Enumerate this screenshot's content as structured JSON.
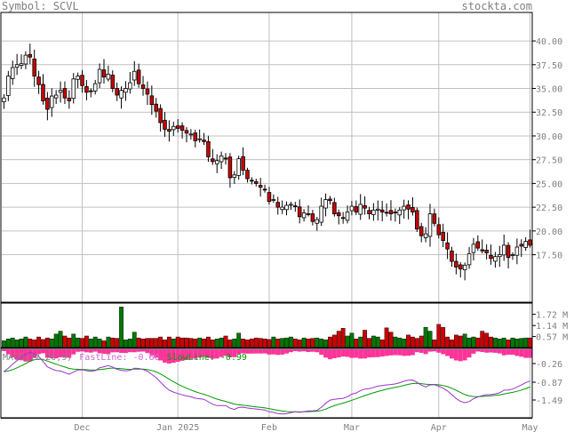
{
  "header": {
    "symbol_text": "Symbol: SCVL",
    "site": "stockta.com"
  },
  "colors": {
    "up_body": "#ffffff",
    "down_body": "#cc0000",
    "volume_up": "#007700",
    "volume_down": "#cc0000",
    "macd_hist": "#ff3399",
    "macd_fast": "#9933cc",
    "macd_signal": "#009900",
    "grid": "#c0c0c0",
    "axis_text": "#808080",
    "frame": "#000000"
  },
  "chart_data": {
    "type": "candlestick",
    "price_axis": {
      "ylim": [
        12.5,
        43.0
      ],
      "ticks": [
        "40.00",
        "37.50",
        "35.00",
        "32.50",
        "30.00",
        "27.50",
        "25.00",
        "22.50",
        "20.00",
        "17.50"
      ],
      "tick_values": [
        40.0,
        37.5,
        35.0,
        32.5,
        30.0,
        27.5,
        25.0,
        22.5,
        20.0,
        17.5
      ]
    },
    "x_axis": {
      "ticks": [
        "Dec",
        "Jan 2025",
        "Feb",
        "Mar",
        "Apr",
        "May"
      ],
      "tick_index": [
        18,
        40,
        61,
        80,
        100,
        121
      ]
    },
    "close": [
      34.0,
      36.3,
      37.2,
      37.5,
      37.6,
      38.5,
      38.3,
      36.3,
      35.4,
      33.7,
      32.8,
      34.2,
      34.3,
      34.8,
      34.0,
      33.7,
      36.0,
      36.3,
      35.3,
      34.6,
      34.7,
      35.5,
      37.0,
      36.2,
      36.5,
      35.0,
      34.3,
      34.8,
      35.0,
      35.6,
      36.8,
      35.5,
      35.0,
      34.4,
      33.3,
      32.6,
      31.4,
      30.7,
      30.5,
      31.0,
      30.8,
      30.6,
      30.3,
      30.2,
      29.5,
      29.7,
      29.4,
      27.8,
      27.3,
      27.4,
      27.9,
      27.6,
      25.6,
      25.9,
      27.6,
      26.4,
      25.5,
      25.3,
      25.0,
      24.6,
      24.3,
      23.1,
      23.3,
      22.5,
      22.5,
      22.7,
      22.8,
      22.6,
      21.5,
      21.9,
      21.8,
      21.0,
      21.2,
      22.6,
      23.3,
      23.2,
      21.8,
      21.6,
      21.4,
      22.0,
      22.6,
      22.0,
      22.8,
      22.4,
      21.8,
      22.2,
      22.3,
      22.0,
      21.9,
      21.8,
      21.9,
      22.2,
      22.6,
      22.3,
      22.0,
      20.2,
      19.5,
      19.7,
      21.8,
      20.8,
      19.6,
      19.0,
      18.1,
      16.8,
      16.2,
      16.0,
      16.4,
      17.6,
      18.6,
      18.2,
      17.9,
      17.7,
      17.1,
      17.3,
      17.5,
      18.5,
      17.2,
      17.5,
      18.3,
      18.4,
      18.9,
      18.5
    ],
    "volume_axis": {
      "ticks": [
        "1.72 M",
        "1.14 M",
        "0.57 M"
      ],
      "tick_values": [
        1.72,
        1.14,
        0.57
      ],
      "ylim": [
        0,
        2.3
      ]
    },
    "volume": [
      0.35,
      0.45,
      0.5,
      0.4,
      0.45,
      0.55,
      0.45,
      0.4,
      0.55,
      0.42,
      0.5,
      0.45,
      0.7,
      0.85,
      0.6,
      0.5,
      0.7,
      0.5,
      0.48,
      0.6,
      0.45,
      0.55,
      0.45,
      0.35,
      0.55,
      0.5,
      0.48,
      2.1,
      0.4,
      0.45,
      0.8,
      0.5,
      0.45,
      0.48,
      0.48,
      0.48,
      0.55,
      0.4,
      0.55,
      0.45,
      0.55,
      0.5,
      0.5,
      0.48,
      0.45,
      0.5,
      0.45,
      0.55,
      0.4,
      0.45,
      0.5,
      0.6,
      0.4,
      0.45,
      0.75,
      0.45,
      0.4,
      0.45,
      0.5,
      0.48,
      0.45,
      0.42,
      0.55,
      0.45,
      0.48,
      0.5,
      0.55,
      0.45,
      0.4,
      0.5,
      0.45,
      0.48,
      0.5,
      0.45,
      0.4,
      0.55,
      0.65,
      0.85,
      1.0,
      0.6,
      0.75,
      0.45,
      0.55,
      0.9,
      0.48,
      0.6,
      0.55,
      0.4,
      1.02,
      0.8,
      0.55,
      0.5,
      0.45,
      0.65,
      0.55,
      0.48,
      0.6,
      1.05,
      0.85,
      0.4,
      1.2,
      1.05,
      0.55,
      0.4,
      0.65,
      0.6,
      0.7,
      0.5,
      0.55,
      0.5,
      0.85,
      0.75,
      0.55,
      0.5,
      0.45,
      0.5,
      0.4,
      0.5,
      0.45,
      0.48,
      0.5,
      0.5
    ],
    "macd_legend": [
      "MACD(12,26,9)",
      "FastLine: -0.66",
      "SlowLine: -0.99"
    ],
    "macd_axis": {
      "ticks": [
        "-0.26",
        "-0.87",
        "-1.49"
      ],
      "tick_values": [
        -0.26,
        -0.87,
        -1.49
      ]
    }
  }
}
